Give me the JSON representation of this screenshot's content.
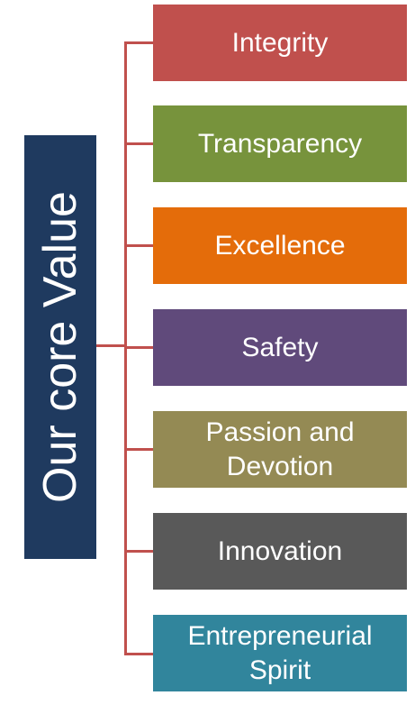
{
  "diagram": {
    "root": {
      "label": "Our core Value",
      "color": "#1f3a5f"
    },
    "connector_color": "#c0504d",
    "values": [
      {
        "label": "Integrity",
        "color": "#c0504d"
      },
      {
        "label": "Transparency",
        "color": "#77933c"
      },
      {
        "label": "Excellence",
        "color": "#e46c0a"
      },
      {
        "label": "Safety",
        "color": "#604a7b"
      },
      {
        "label": "Passion and Devotion",
        "color": "#948a54"
      },
      {
        "label": "Innovation",
        "color": "#595959"
      },
      {
        "label": "Entrepreneurial Spirit",
        "color": "#31859c"
      }
    ]
  }
}
